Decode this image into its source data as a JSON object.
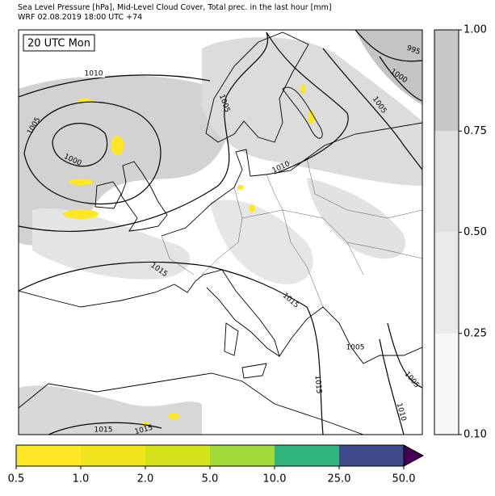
{
  "header": {
    "title_line1": "Sea Level Pressure [hPa], Mid-Level Cloud Cover, Total prec. in the last hour [mm]",
    "title_line2": "WRF 02.08.2019 18:00 UTC +74"
  },
  "time_label": "20 UTC Mon",
  "isobar_labels": [
    "1010",
    "1005",
    "1000",
    "1005",
    "1005",
    "995",
    "1000",
    "1005",
    "1010",
    "1015",
    "1015",
    "1015",
    "1005",
    "1010",
    "1015",
    "1015"
  ],
  "cloud_colorbar": {
    "ticks": [
      "0.10",
      "0.25",
      "0.50",
      "0.75",
      "1.00"
    ],
    "colors": [
      "#f7f7f7",
      "#eaeaea",
      "#e0e0e0",
      "#c8c8c8"
    ]
  },
  "precip_colorbar": {
    "ticks": [
      "0.5",
      "1.0",
      "2.0",
      "5.0",
      "10.0",
      "25.0",
      "50.0"
    ],
    "colors": [
      "#fde725",
      "#f0e51c",
      "#d4e21a",
      "#a0da39",
      "#2fb47c",
      "#3e4a89"
    ],
    "extend_color": "#440154"
  }
}
